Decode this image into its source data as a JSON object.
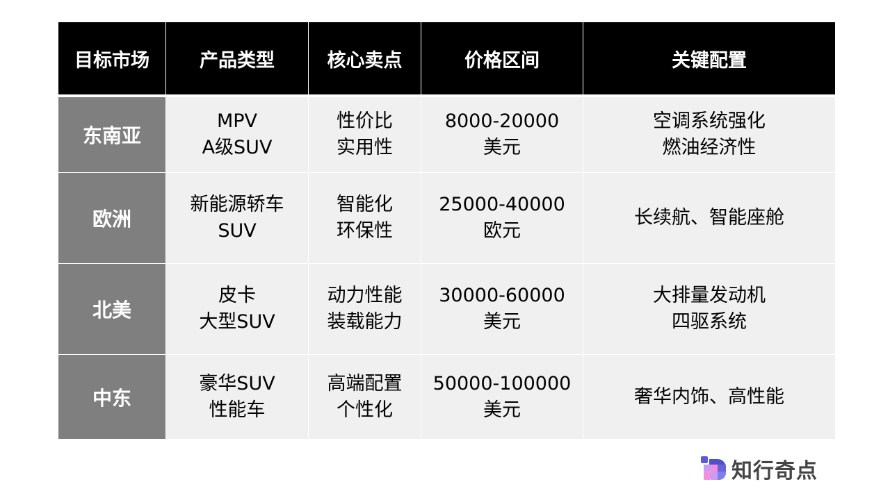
{
  "table": {
    "headers": [
      "目标市场",
      "产品类型",
      "核心卖点",
      "价格区间",
      "关键配置"
    ],
    "rows": [
      {
        "market": "东南亚",
        "product": "MPV\nA级SUV",
        "selling": "性价比\n实用性",
        "price": "8000-20000\n美元",
        "config": "空调系统强化\n燃油经济性"
      },
      {
        "market": "欧洲",
        "product": "新能源轿车\nSUV",
        "selling": "智能化\n环保性",
        "price": "25000-40000\n欧元",
        "config": "长续航、智能座舱"
      },
      {
        "market": "北美",
        "product": "皮卡\n大型SUV",
        "selling": "动力性能\n装载能力",
        "price": "30000-60000\n美元",
        "config": "大排量发动机\n四驱系统"
      },
      {
        "market": "中东",
        "product": "豪华SUV\n性能车",
        "selling": "高端配置\n个性化",
        "price": "50000-100000\n美元",
        "config": "奢华内饰、高性能"
      }
    ]
  },
  "logo": {
    "text": "知行奇点",
    "icon": "pixel-block-logo-icon"
  },
  "colors": {
    "header_bg": "#000000",
    "row_header_bg": "#7f7f7f",
    "cell_bg": "#f0f0f0"
  }
}
